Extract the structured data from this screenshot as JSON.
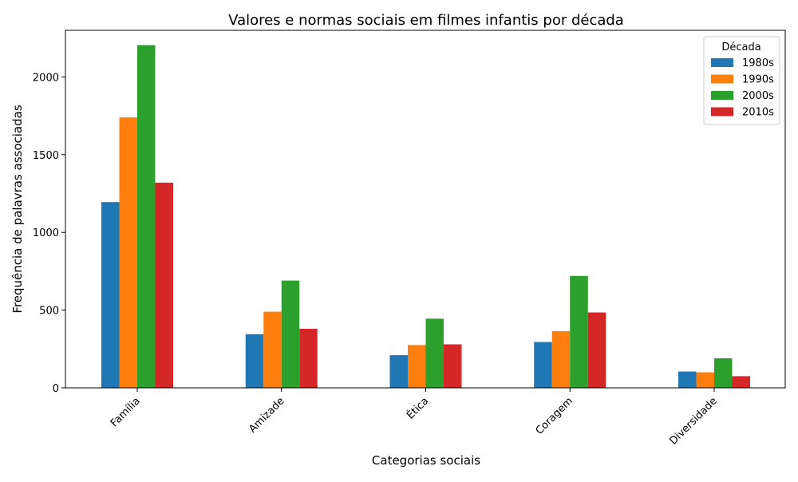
{
  "chart_data": {
    "type": "bar",
    "title": "Valores e normas sociais em filmes infantis por década",
    "xlabel": "Categorias sociais",
    "ylabel": "Frequência de palavras associadas",
    "categories": [
      "Família",
      "Amizade",
      "Ética",
      "Coragem",
      "Diversidade"
    ],
    "series": [
      {
        "name": "1980s",
        "color": "#1f77b4",
        "values": [
          1195,
          345,
          210,
          295,
          105
        ]
      },
      {
        "name": "1990s",
        "color": "#ff7f0e",
        "values": [
          1740,
          490,
          275,
          365,
          100
        ]
      },
      {
        "name": "2000s",
        "color": "#2ca02c",
        "values": [
          2205,
          690,
          445,
          720,
          190
        ]
      },
      {
        "name": "2010s",
        "color": "#d62728",
        "values": [
          1320,
          380,
          280,
          485,
          75
        ]
      }
    ],
    "ylim": [
      0,
      2300
    ],
    "yticks": [
      0,
      500,
      1000,
      1500,
      2000
    ],
    "grid": false,
    "legend": {
      "title": "Década",
      "position": "top-right"
    }
  }
}
